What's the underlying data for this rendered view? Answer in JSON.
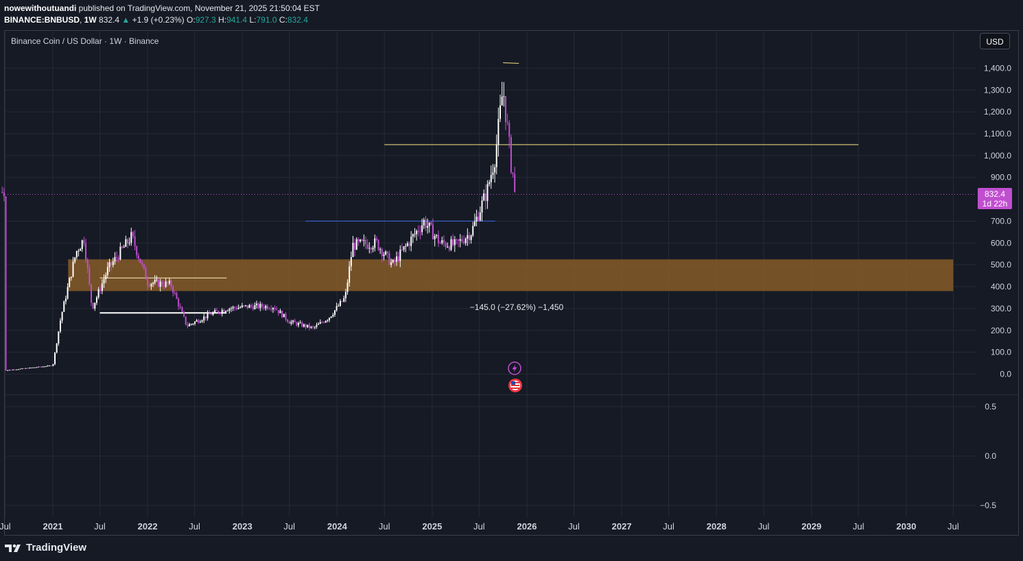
{
  "header": {
    "author": "nowewithoutuandi",
    "published_text": "published on TradingView.com, November 21, 2025 21:50:04 EST",
    "symbol": "BINANCE:BNBUSD",
    "interval": "1W",
    "last": "832.4",
    "change_arrow": "▲",
    "change": "+1.9 (+0.23%)",
    "o_label": "O:",
    "o_value": "927.3",
    "h_label": "H:",
    "h_value": "941.4",
    "l_label": "L:",
    "l_value": "791.0",
    "c_label": "C:",
    "c_value": "832.4"
  },
  "chart": {
    "title": "Binance Coin / US Dollar · 1W · Binance",
    "currency_button": "USD",
    "price_badge": {
      "price": "832.4",
      "countdown": "1d 22h"
    },
    "measure_label": "−145.0 (−27.62%) −1,450",
    "event_icons": [
      "lightning-icon",
      "us-flag-icon"
    ]
  },
  "chart_data": {
    "type": "candlestick",
    "title": "Binance Coin / US Dollar · 1W · Binance",
    "ylabel": "USD",
    "ylim": [
      -50,
      1450
    ],
    "y_ticks": [
      "1,400.0",
      "1,300.0",
      "1,200.0",
      "1,100.0",
      "1,000.0",
      "900.0",
      "700.0",
      "600.0",
      "500.0",
      "400.0",
      "300.0",
      "200.0",
      "100.0",
      "0.0"
    ],
    "lower_pane_ticks": [
      "0.5",
      "0.0",
      "−0.5"
    ],
    "x_ticks": [
      "Jul",
      "2021",
      "Jul",
      "2022",
      "Jul",
      "2023",
      "Jul",
      "2024",
      "Jul",
      "2025",
      "Jul",
      "2026",
      "Jul",
      "2027",
      "Jul",
      "2028",
      "Jul",
      "2029",
      "Jul",
      "2030",
      "Jul"
    ],
    "last_price": 832.4,
    "approx_weekly_closes": [
      {
        "date": "2020-07",
        "value": 17
      },
      {
        "date": "2020-10",
        "value": 28
      },
      {
        "date": "2021-01",
        "value": 40
      },
      {
        "date": "2021-02",
        "value": 260
      },
      {
        "date": "2021-04",
        "value": 560
      },
      {
        "date": "2021-05",
        "value": 620
      },
      {
        "date": "2021-06",
        "value": 300
      },
      {
        "date": "2021-08",
        "value": 480
      },
      {
        "date": "2021-11",
        "value": 630
      },
      {
        "date": "2022-01",
        "value": 420
      },
      {
        "date": "2022-04",
        "value": 410
      },
      {
        "date": "2022-06",
        "value": 220
      },
      {
        "date": "2022-09",
        "value": 275
      },
      {
        "date": "2022-11",
        "value": 300
      },
      {
        "date": "2023-02",
        "value": 310
      },
      {
        "date": "2023-05",
        "value": 310
      },
      {
        "date": "2023-07",
        "value": 240
      },
      {
        "date": "2023-10",
        "value": 210
      },
      {
        "date": "2023-12",
        "value": 260
      },
      {
        "date": "2024-02",
        "value": 350
      },
      {
        "date": "2024-03",
        "value": 590
      },
      {
        "date": "2024-06",
        "value": 600
      },
      {
        "date": "2024-08",
        "value": 500
      },
      {
        "date": "2024-11",
        "value": 650
      },
      {
        "date": "2024-12",
        "value": 700
      },
      {
        "date": "2025-02",
        "value": 600
      },
      {
        "date": "2025-04",
        "value": 590
      },
      {
        "date": "2025-06",
        "value": 650
      },
      {
        "date": "2025-08",
        "value": 840
      },
      {
        "date": "2025-09",
        "value": 1000
      },
      {
        "date": "2025-10",
        "value": 1310
      },
      {
        "date": "2025-10-20",
        "value": 1100
      },
      {
        "date": "2025-11",
        "value": 960
      },
      {
        "date": "2025-11-21",
        "value": 832.4
      }
    ],
    "zones": [
      {
        "type": "rectangle",
        "color": "#8a5e28",
        "from_price": 380,
        "to_price": 525,
        "from": "2021-03",
        "to": "2030-07"
      }
    ],
    "lines": [
      {
        "color": "#e0d07a",
        "price": 1050,
        "from": "2024-07",
        "to": "2029-07"
      },
      {
        "color": "#3a62d8",
        "price": 700,
        "from": "2023-09",
        "to": "2025-09"
      },
      {
        "color": "#f0e0b0",
        "price": 440,
        "from": "2021-07",
        "to": "2022-11"
      },
      {
        "color": "#ffffff",
        "price": 280,
        "from": "2021-07",
        "to": "2022-11"
      },
      {
        "color": "#e0d07a",
        "price": 1425,
        "from": "2025-10",
        "to": "2025-12"
      }
    ],
    "colors": {
      "up": "#ffffff",
      "down": "#c04fd0",
      "price_badge": "#c04fd0",
      "background": "#161a25",
      "grid": "#252a36"
    },
    "grid": true
  },
  "footer": {
    "brand": "TradingView"
  }
}
